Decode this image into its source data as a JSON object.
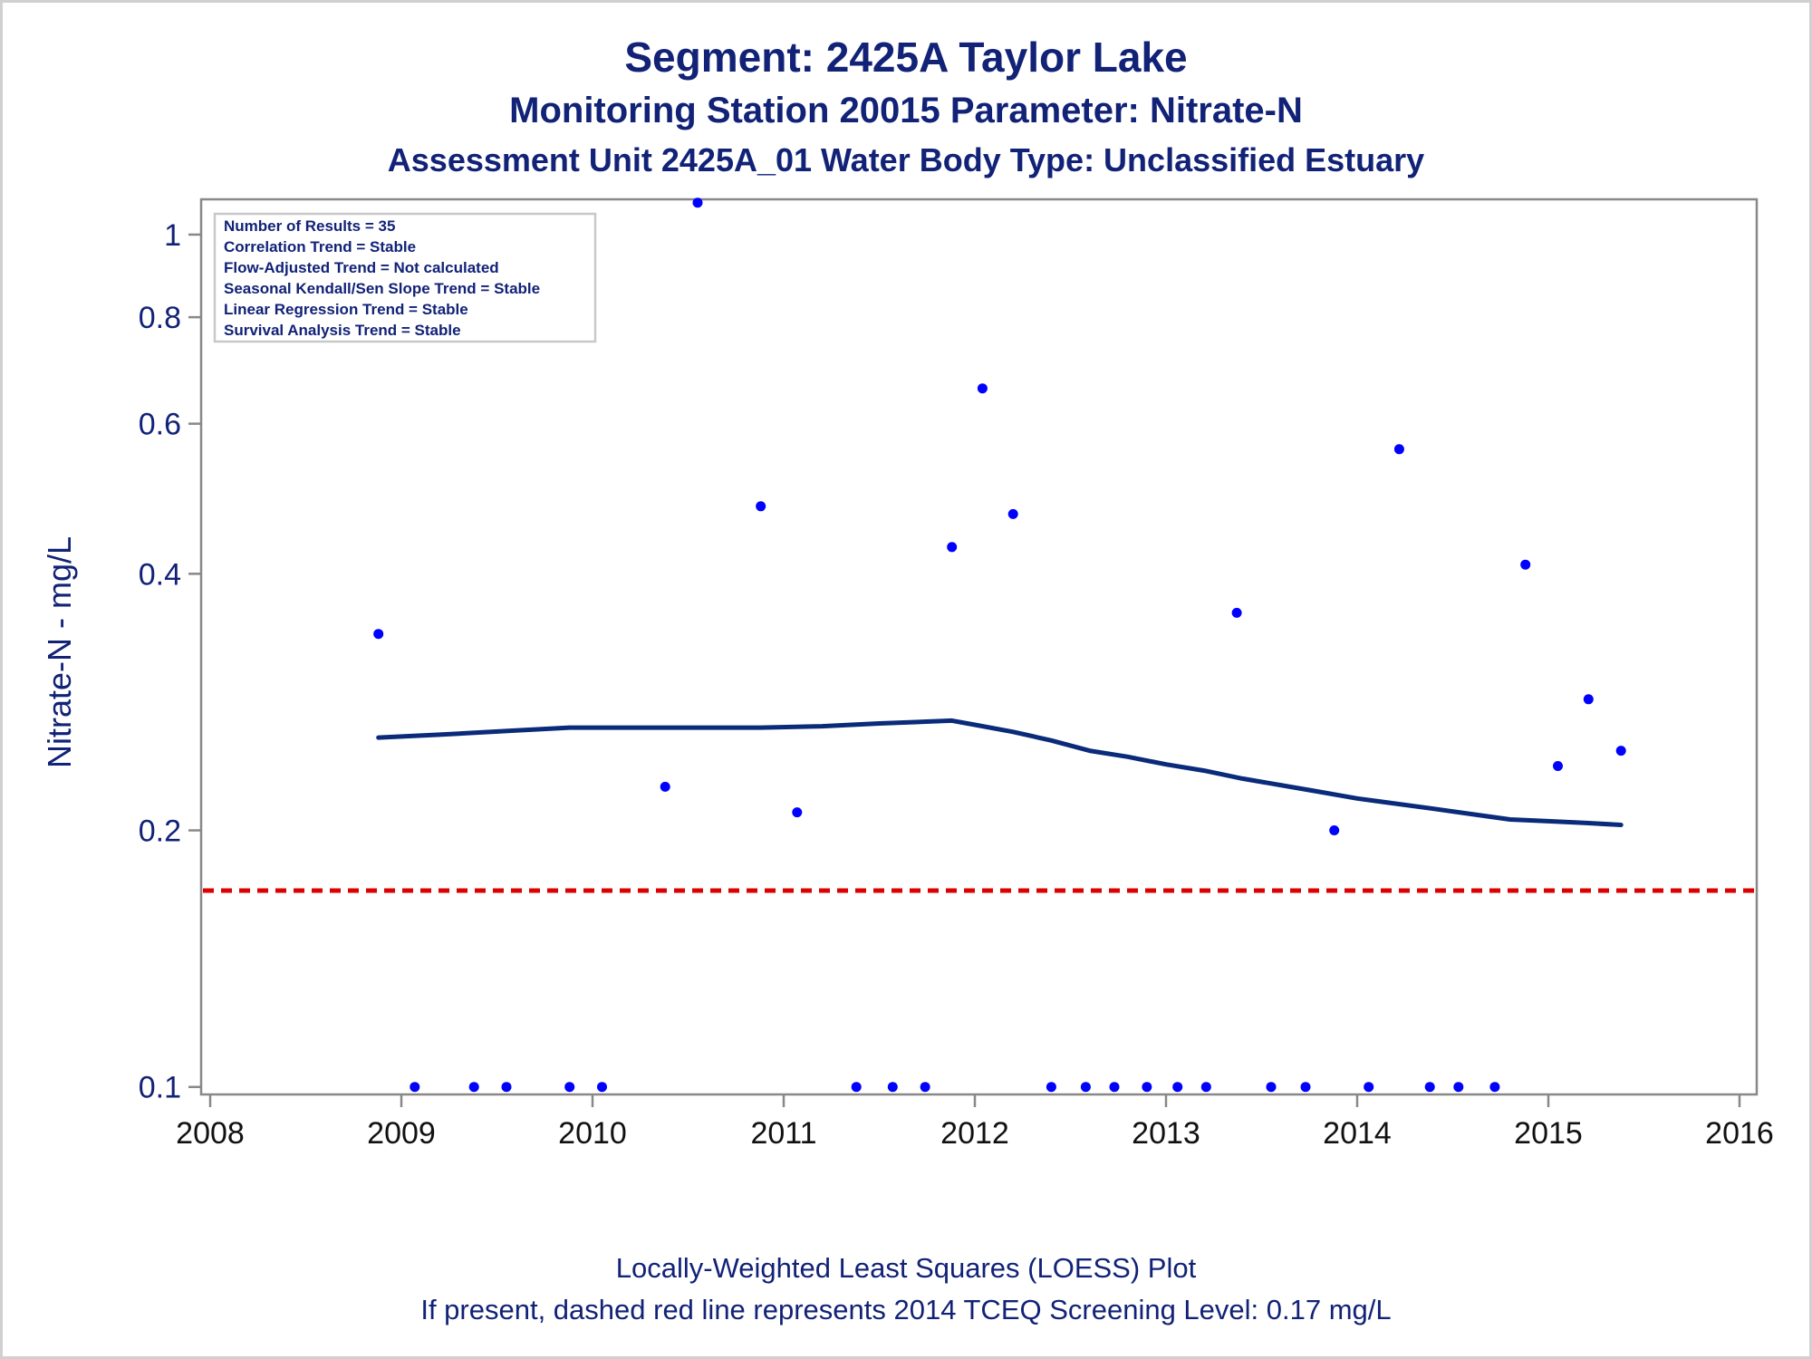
{
  "titles": {
    "line1": "Segment: 2425A  Taylor Lake",
    "line2": "Monitoring Station 20015 Parameter: Nitrate-N",
    "line3": "Assessment Unit 2425A_01   Water Body Type: Unclassified Estuary"
  },
  "footnotes": {
    "line1": "Locally-Weighted Least Squares (LOESS) Plot",
    "line2": "If present, dashed red line represents 2014 TCEQ Screening Level: 0.17 mg/L"
  },
  "legend_lines": [
    "Number of Results = 35",
    "Correlation Trend = Stable",
    "Flow-Adjusted Trend = Not calculated",
    "Seasonal Kendall/Sen Slope Trend = Stable",
    "Linear Regression Trend = Stable",
    "Survival Analysis Trend = Stable"
  ],
  "colors": {
    "text": "#112277",
    "points": "#0000ff",
    "loess": "#0a2a7a",
    "screening": "#dd0000",
    "axis": "#888888"
  },
  "chart_data": {
    "type": "scatter",
    "ylabel": "Nitrate-N - mg/L",
    "xlabel": "",
    "y_scale": "log",
    "xlim": [
      2008,
      2016
    ],
    "ylim": [
      0.098,
      1.1
    ],
    "x_ticks": [
      2008,
      2009,
      2010,
      2011,
      2012,
      2013,
      2014,
      2015,
      2016
    ],
    "y_ticks": [
      0.1,
      0.2,
      0.4,
      0.6,
      0.8,
      1
    ],
    "y_tick_labels": [
      "0.1",
      "0.2",
      "0.4",
      "0.6",
      "0.8",
      "1"
    ],
    "screening_level": 0.17,
    "points": [
      {
        "x": 2008.88,
        "y": 0.34
      },
      {
        "x": 2009.07,
        "y": 0.1
      },
      {
        "x": 2009.38,
        "y": 0.1
      },
      {
        "x": 2009.55,
        "y": 0.1
      },
      {
        "x": 2009.88,
        "y": 0.1
      },
      {
        "x": 2010.05,
        "y": 0.1
      },
      {
        "x": 2010.38,
        "y": 0.225
      },
      {
        "x": 2010.55,
        "y": 1.09
      },
      {
        "x": 2010.88,
        "y": 0.48
      },
      {
        "x": 2011.07,
        "y": 0.21
      },
      {
        "x": 2011.38,
        "y": 0.1
      },
      {
        "x": 2011.57,
        "y": 0.1
      },
      {
        "x": 2011.74,
        "y": 0.1
      },
      {
        "x": 2011.88,
        "y": 0.43
      },
      {
        "x": 2012.04,
        "y": 0.66
      },
      {
        "x": 2012.2,
        "y": 0.47
      },
      {
        "x": 2012.4,
        "y": 0.1
      },
      {
        "x": 2012.58,
        "y": 0.1
      },
      {
        "x": 2012.73,
        "y": 0.1
      },
      {
        "x": 2012.9,
        "y": 0.1
      },
      {
        "x": 2013.06,
        "y": 0.1
      },
      {
        "x": 2013.21,
        "y": 0.1
      },
      {
        "x": 2013.37,
        "y": 0.36
      },
      {
        "x": 2013.55,
        "y": 0.1
      },
      {
        "x": 2013.73,
        "y": 0.1
      },
      {
        "x": 2013.88,
        "y": 0.2
      },
      {
        "x": 2014.06,
        "y": 0.1
      },
      {
        "x": 2014.22,
        "y": 0.56
      },
      {
        "x": 2014.38,
        "y": 0.1
      },
      {
        "x": 2014.53,
        "y": 0.1
      },
      {
        "x": 2014.72,
        "y": 0.1
      },
      {
        "x": 2014.88,
        "y": 0.41
      },
      {
        "x": 2015.05,
        "y": 0.238
      },
      {
        "x": 2015.21,
        "y": 0.285
      },
      {
        "x": 2015.38,
        "y": 0.248
      }
    ],
    "loess": {
      "x": [
        2008.88,
        2009.2,
        2009.6,
        2009.88,
        2010.2,
        2010.6,
        2010.88,
        2011.2,
        2011.5,
        2011.88,
        2012.0,
        2012.2,
        2012.4,
        2012.6,
        2012.8,
        2013.0,
        2013.2,
        2013.4,
        2013.6,
        2013.8,
        2014.0,
        2014.2,
        2014.4,
        2014.6,
        2014.8,
        2015.0,
        2015.2,
        2015.38
      ],
      "y": [
        0.257,
        0.259,
        0.262,
        0.264,
        0.264,
        0.264,
        0.264,
        0.265,
        0.267,
        0.269,
        0.266,
        0.261,
        0.255,
        0.248,
        0.244,
        0.239,
        0.235,
        0.23,
        0.226,
        0.222,
        0.218,
        0.215,
        0.212,
        0.209,
        0.206,
        0.205,
        0.204,
        0.203
      ]
    }
  }
}
